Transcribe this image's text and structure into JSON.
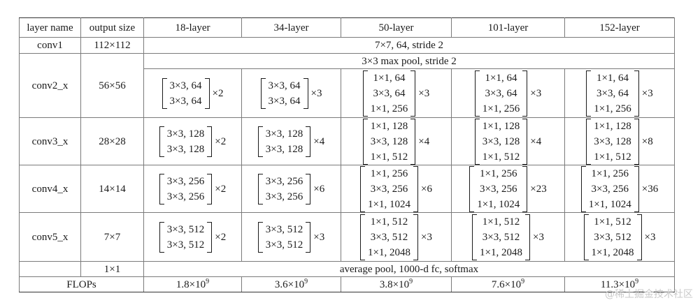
{
  "headers": [
    "layer name",
    "output size",
    "18-layer",
    "34-layer",
    "50-layer",
    "101-layer",
    "152-layer"
  ],
  "conv1": {
    "name": "conv1",
    "size": "112×112",
    "desc": "7×7, 64, stride 2"
  },
  "pool_desc": "3×3 max pool, stride 2",
  "stages": [
    {
      "name": "conv2_x",
      "size": "56×56",
      "blocks": [
        {
          "lines": [
            "3×3, 64",
            "3×3, 64"
          ],
          "rep": "×2"
        },
        {
          "lines": [
            "3×3, 64",
            "3×3, 64"
          ],
          "rep": "×3"
        },
        {
          "lines": [
            "1×1, 64",
            "3×3, 64",
            "1×1, 256"
          ],
          "rep": "×3"
        },
        {
          "lines": [
            "1×1, 64",
            "3×3, 64",
            "1×1, 256"
          ],
          "rep": "×3"
        },
        {
          "lines": [
            "1×1, 64",
            "3×3, 64",
            "1×1, 256"
          ],
          "rep": "×3"
        }
      ]
    },
    {
      "name": "conv3_x",
      "size": "28×28",
      "blocks": [
        {
          "lines": [
            "3×3, 128",
            "3×3, 128"
          ],
          "rep": "×2"
        },
        {
          "lines": [
            "3×3, 128",
            "3×3, 128"
          ],
          "rep": "×4"
        },
        {
          "lines": [
            "1×1, 128",
            "3×3, 128",
            "1×1, 512"
          ],
          "rep": "×4"
        },
        {
          "lines": [
            "1×1, 128",
            "3×3, 128",
            "1×1, 512"
          ],
          "rep": "×4"
        },
        {
          "lines": [
            "1×1, 128",
            "3×3, 128",
            "1×1, 512"
          ],
          "rep": "×8"
        }
      ]
    },
    {
      "name": "conv4_x",
      "size": "14×14",
      "blocks": [
        {
          "lines": [
            "3×3, 256",
            "3×3, 256"
          ],
          "rep": "×2"
        },
        {
          "lines": [
            "3×3, 256",
            "3×3, 256"
          ],
          "rep": "×6"
        },
        {
          "lines": [
            "1×1, 256",
            "3×3, 256",
            "1×1, 1024"
          ],
          "rep": "×6"
        },
        {
          "lines": [
            "1×1, 256",
            "3×3, 256",
            "1×1, 1024"
          ],
          "rep": "×23"
        },
        {
          "lines": [
            "1×1, 256",
            "3×3, 256",
            "1×1, 1024"
          ],
          "rep": "×36"
        }
      ]
    },
    {
      "name": "conv5_x",
      "size": "7×7",
      "blocks": [
        {
          "lines": [
            "3×3, 512",
            "3×3, 512"
          ],
          "rep": "×2"
        },
        {
          "lines": [
            "3×3, 512",
            "3×3, 512"
          ],
          "rep": "×3"
        },
        {
          "lines": [
            "1×1, 512",
            "3×3, 512",
            "1×1, 2048"
          ],
          "rep": "×3"
        },
        {
          "lines": [
            "1×1, 512",
            "3×3, 512",
            "1×1, 2048"
          ],
          "rep": "×3"
        },
        {
          "lines": [
            "1×1, 512",
            "3×3, 512",
            "1×1, 2048"
          ],
          "rep": "×3"
        }
      ]
    }
  ],
  "final": {
    "size": "1×1",
    "desc": "average pool, 1000-d fc, softmax"
  },
  "flops": {
    "label": "FLOPs",
    "base": "×10",
    "exp": "9",
    "values": [
      "1.8",
      "3.6",
      "3.8",
      "7.6",
      "11.3"
    ]
  },
  "watermark": "@稀土掘金技术社区"
}
